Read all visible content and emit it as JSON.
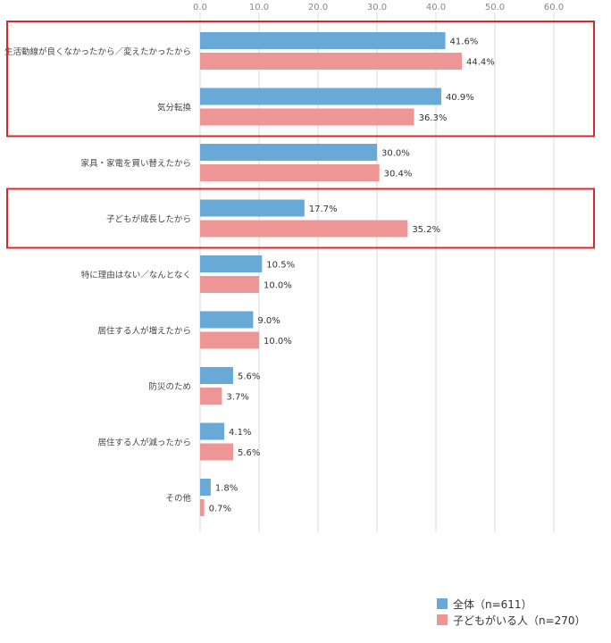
{
  "chart_data": {
    "type": "bar",
    "orientation": "horizontal",
    "categories": [
      "生活動線が良くなかったから／変えたかったから",
      "気分転換",
      "家具・家電を買い替えたから",
      "子どもが成長したから",
      "特に理由はない／なんとなく",
      "居住する人が増えたから",
      "防災のため",
      "居住する人が減ったから",
      "その他"
    ],
    "series": [
      {
        "name": "全体（n=611）",
        "color": "#69a9d8",
        "values": [
          41.6,
          40.9,
          30.0,
          17.7,
          10.5,
          9.0,
          5.6,
          4.1,
          1.8
        ],
        "labels": [
          "41.6%",
          "40.9%",
          "30.0%",
          "17.7%",
          "10.5%",
          "9.0%",
          "5.6%",
          "4.1%",
          "1.8%"
        ]
      },
      {
        "name": "子どもがいる人（n=270）",
        "color": "#ee9595",
        "values": [
          44.4,
          36.3,
          30.4,
          35.2,
          10.0,
          10.0,
          3.7,
          5.6,
          0.7
        ],
        "labels": [
          "44.4%",
          "36.3%",
          "30.4%",
          "35.2%",
          "10.0%",
          "10.0%",
          "3.7%",
          "5.6%",
          "0.7%"
        ]
      }
    ],
    "xlim": [
      0,
      60
    ],
    "xticks": [
      "0.0",
      "10.0",
      "20.0",
      "30.0",
      "40.0",
      "50.0",
      "60.0"
    ],
    "grid": true,
    "legend_position": "bottom-right",
    "highlight_color": "#d9272a",
    "highlight_groups": [
      [
        0,
        1
      ],
      [
        3
      ]
    ]
  }
}
